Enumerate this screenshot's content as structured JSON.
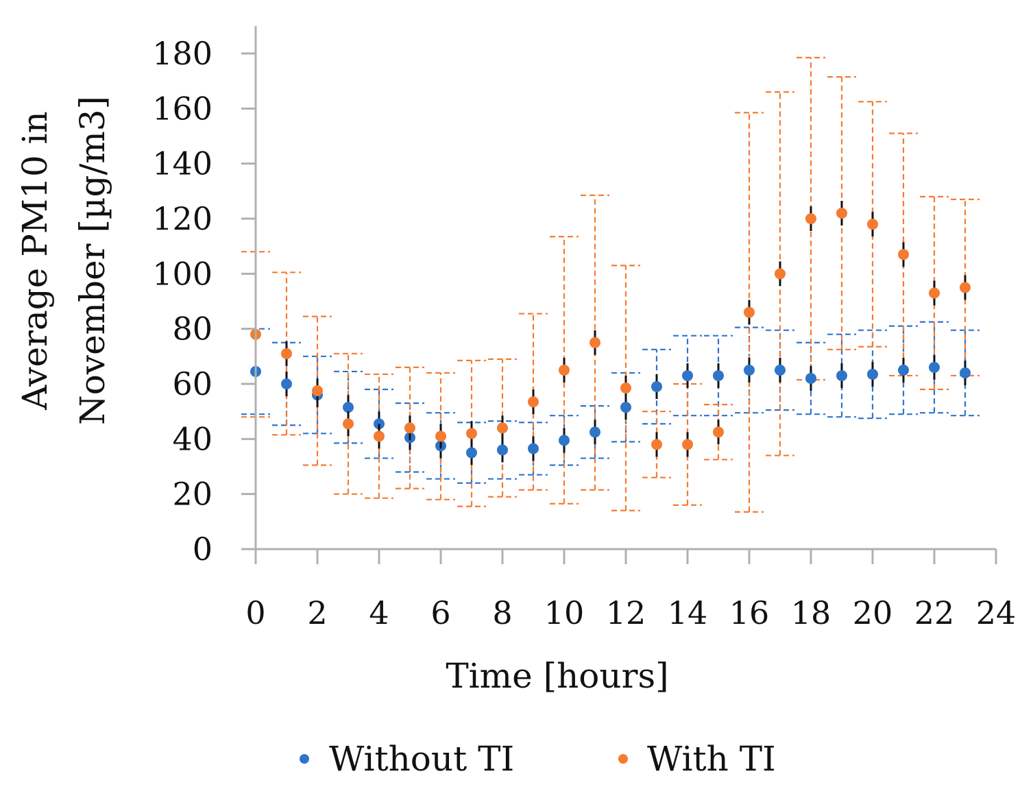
{
  "chart_data": {
    "type": "scatter",
    "title": "",
    "xlabel": "Time [hours]",
    "ylabel_lines": [
      "Average PM10 in",
      "November [µg/m3]"
    ],
    "xlim": [
      0,
      24
    ],
    "ylim": [
      0,
      180
    ],
    "xticks": [
      0,
      2,
      4,
      6,
      8,
      10,
      12,
      14,
      16,
      18,
      20,
      22,
      24
    ],
    "yticks": [
      0,
      20,
      40,
      60,
      80,
      100,
      120,
      140,
      160,
      180
    ],
    "grid": false,
    "legend_position": "bottom",
    "error_bars": "dashed, symmetric",
    "series": [
      {
        "name": "Without TI",
        "color": "#2e75c9",
        "x": [
          0,
          1,
          2,
          3,
          4,
          5,
          6,
          7,
          8,
          9,
          10,
          11,
          12,
          13,
          14,
          15,
          16,
          17,
          18,
          19,
          20,
          21,
          22,
          23
        ],
        "y": [
          64.5,
          60,
          56,
          51.5,
          45.5,
          40.5,
          37.5,
          35,
          36,
          36.5,
          39.5,
          42.5,
          51.5,
          59,
          63,
          63,
          65,
          65,
          62,
          63,
          63.5,
          65,
          66,
          64
        ],
        "error": [
          15.5,
          15,
          14,
          13,
          12.5,
          12.5,
          12,
          11,
          10.5,
          9.5,
          9,
          9.5,
          12.5,
          13.5,
          14.5,
          14.5,
          15.5,
          14.5,
          13,
          15,
          16,
          16,
          16.5,
          15.5
        ]
      },
      {
        "name": "With TI",
        "color": "#f47b30",
        "x": [
          0,
          1,
          2,
          3,
          4,
          5,
          6,
          7,
          8,
          9,
          10,
          11,
          12,
          13,
          14,
          15,
          16,
          17,
          18,
          19,
          20,
          21,
          22,
          23
        ],
        "y": [
          78,
          71,
          57.5,
          45.5,
          41,
          44,
          41,
          42,
          44,
          53.5,
          65,
          75,
          58.5,
          38,
          38,
          42.5,
          86,
          100,
          120,
          122,
          118,
          107,
          93,
          95
        ],
        "error": [
          30,
          29.5,
          27,
          25.5,
          22.5,
          22,
          23,
          26.5,
          25,
          32,
          48.5,
          53.5,
          44.5,
          12,
          22,
          10,
          72.5,
          66,
          58.5,
          49.5,
          44.5,
          44,
          35,
          32
        ]
      }
    ]
  }
}
